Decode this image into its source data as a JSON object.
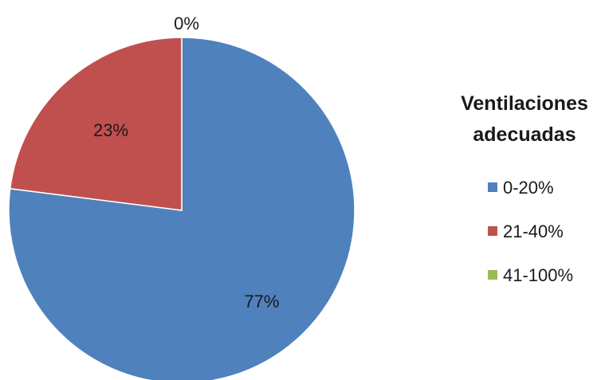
{
  "chart_data": {
    "type": "pie",
    "title": "",
    "legend_title": "Ventilaciones adecuadas",
    "legend_title_lines": [
      "Ventilaciones",
      "adecuadas"
    ],
    "legend_position": "right",
    "categories": [
      "0-20%",
      "21-40%",
      "41-100%"
    ],
    "values": [
      77,
      23,
      0
    ],
    "data_labels": [
      "77%",
      "23%",
      "0%"
    ],
    "colors": [
      "#4f81bd",
      "#c0504d",
      "#9bbb59"
    ]
  }
}
